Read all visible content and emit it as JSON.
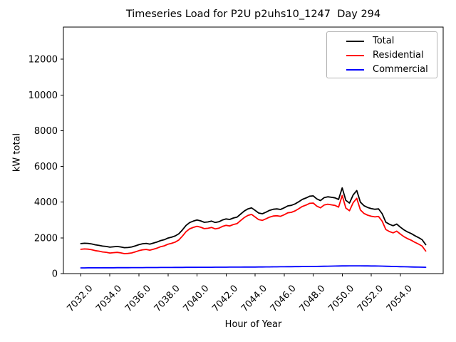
{
  "figure": {
    "title": "Timeseries Load for P2U p2uhs10_1247  Day 294",
    "xlabel": "Hour of Year",
    "ylabel": "kW total"
  },
  "legend": {
    "position": "upper right",
    "entries": [
      {
        "label": "Total",
        "color": "#000000"
      },
      {
        "label": "Residential",
        "color": "#ff0000"
      },
      {
        "label": "Commercial",
        "color": "#0000ff"
      }
    ]
  },
  "chart_data": {
    "type": "line",
    "title": "Timeseries Load for P2U p2uhs10_1247  Day 294",
    "xlabel": "Hour of Year",
    "ylabel": "kW total",
    "grid": false,
    "legend_position": "upper right",
    "xlim": [
      7030.8,
      7056.95
    ],
    "ylim": [
      0,
      13800
    ],
    "x_ticks": [
      7032,
      7034,
      7036,
      7038,
      7040,
      7042,
      7044,
      7046,
      7048,
      7050,
      7052,
      7054
    ],
    "x_tick_labels": [
      "7032.0",
      "7034.0",
      "7036.0",
      "7038.0",
      "7040.0",
      "7042.0",
      "7044.0",
      "7046.0",
      "7048.0",
      "7050.0",
      "7052.0",
      "7054.0"
    ],
    "y_ticks": [
      0,
      2000,
      4000,
      6000,
      8000,
      10000,
      12000
    ],
    "y_tick_labels": [
      "0",
      "2000",
      "4000",
      "6000",
      "8000",
      "10000",
      "12000"
    ],
    "x_start": 7032.0,
    "x_step": 0.25,
    "series": [
      {
        "name": "Total",
        "color": "#000000",
        "values": [
          1680,
          1700,
          1690,
          1660,
          1610,
          1580,
          1540,
          1520,
          1480,
          1500,
          1520,
          1490,
          1450,
          1460,
          1490,
          1550,
          1620,
          1670,
          1690,
          1650,
          1710,
          1770,
          1850,
          1900,
          1990,
          2040,
          2110,
          2230,
          2450,
          2700,
          2860,
          2940,
          3000,
          2950,
          2870,
          2890,
          2940,
          2860,
          2900,
          3000,
          3060,
          3030,
          3110,
          3160,
          3330,
          3500,
          3620,
          3680,
          3540,
          3390,
          3350,
          3440,
          3540,
          3600,
          3620,
          3590,
          3680,
          3790,
          3820,
          3900,
          4020,
          4150,
          4230,
          4330,
          4350,
          4180,
          4090,
          4250,
          4300,
          4270,
          4240,
          4150,
          4800,
          4100,
          3950,
          4400,
          4650,
          4000,
          3800,
          3700,
          3640,
          3600,
          3620,
          3350,
          2880,
          2760,
          2680,
          2770,
          2600,
          2450,
          2330,
          2240,
          2120,
          2020,
          1900,
          1620
        ]
      },
      {
        "name": "Residential",
        "color": "#ff0000",
        "values": [
          1360,
          1380,
          1368,
          1338,
          1286,
          1256,
          1214,
          1194,
          1152,
          1172,
          1190,
          1160,
          1118,
          1128,
          1156,
          1216,
          1284,
          1333,
          1352,
          1311,
          1370,
          1429,
          1508,
          1557,
          1646,
          1695,
          1764,
          1883,
          2102,
          2351,
          2510,
          2589,
          2648,
          2597,
          2516,
          2535,
          2584,
          2503,
          2542,
          2641,
          2700,
          2669,
          2748,
          2797,
          2966,
          3135,
          3254,
          3313,
          3172,
          3020,
          2978,
          3066,
          3164,
          3222,
          3240,
          3208,
          3296,
          3404,
          3432,
          3510,
          3628,
          3756,
          3834,
          3932,
          3950,
          3776,
          3682,
          3838,
          3884,
          3850,
          3816,
          3722,
          4370,
          3668,
          3516,
          3965,
          4216,
          3567,
          3368,
          3270,
          3212,
          3175,
          3198,
          2932,
          2468,
          2354,
          2280,
          2376,
          2212,
          2068,
          1953,
          1868,
          1752,
          1656,
          1540,
          1264
        ]
      },
      {
        "name": "Commercial",
        "color": "#0000ff",
        "values": [
          320,
          320,
          322,
          322,
          324,
          324,
          326,
          326,
          328,
          328,
          330,
          330,
          332,
          332,
          334,
          334,
          336,
          337,
          338,
          339,
          340,
          341,
          342,
          343,
          344,
          345,
          346,
          347,
          348,
          349,
          350,
          351,
          352,
          353,
          354,
          355,
          356,
          357,
          358,
          359,
          360,
          361,
          362,
          363,
          364,
          365,
          366,
          367,
          368,
          370,
          372,
          374,
          376,
          378,
          380,
          382,
          384,
          386,
          388,
          390,
          392,
          394,
          396,
          398,
          400,
          404,
          408,
          412,
          416,
          420,
          424,
          428,
          430,
          432,
          434,
          435,
          434,
          433,
          432,
          430,
          428,
          425,
          422,
          418,
          412,
          406,
          400,
          394,
          388,
          382,
          377,
          372,
          368,
          364,
          360,
          356
        ]
      }
    ]
  }
}
